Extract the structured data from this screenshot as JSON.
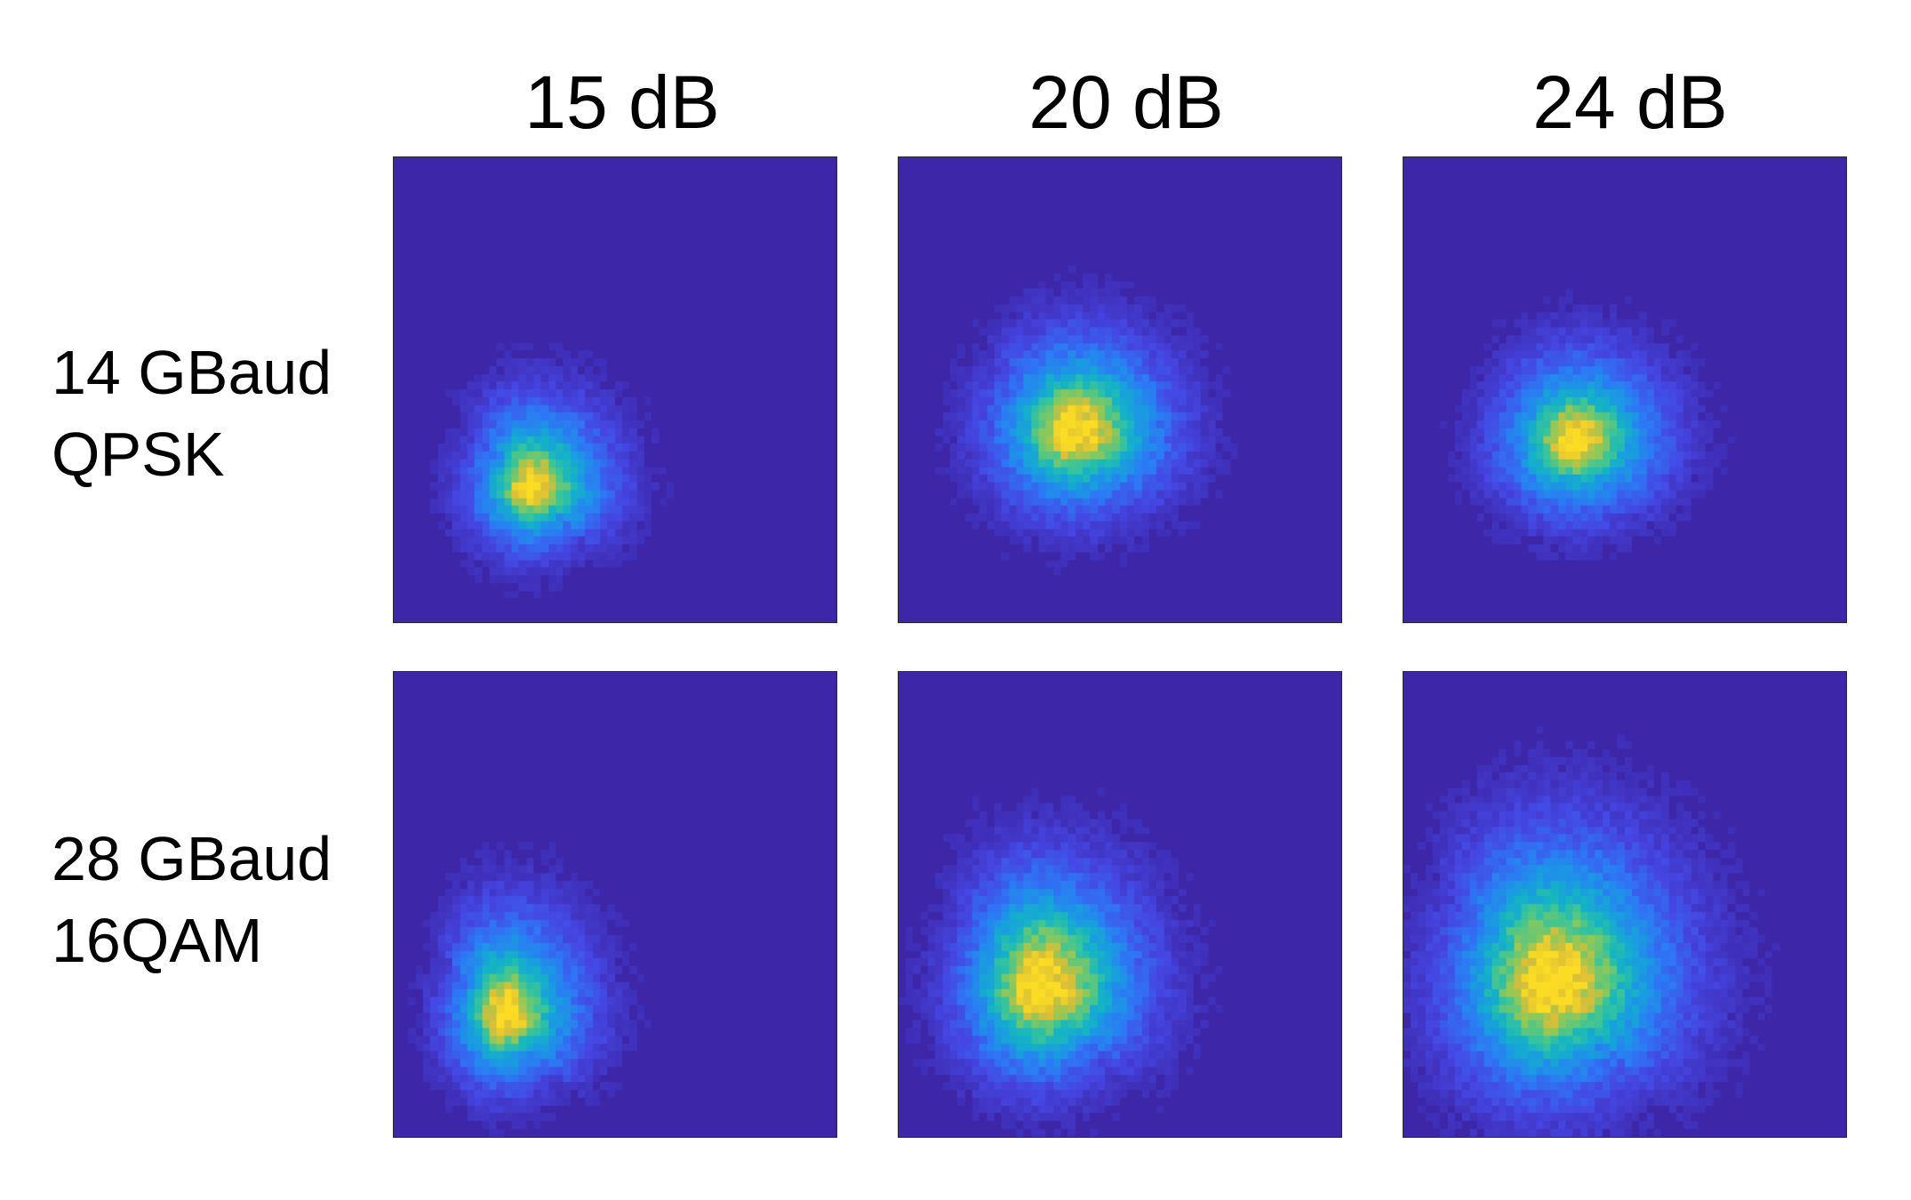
{
  "chart_data": {
    "type": "heatmap",
    "colormap": "parula",
    "background_color": "#3d26a8",
    "column_labels": [
      "15 dB",
      "20 dB",
      "24 dB"
    ],
    "row_labels": [
      [
        "14 GBaud",
        "QPSK"
      ],
      [
        "28 GBaud",
        "16QAM"
      ]
    ],
    "grid_bins": 60,
    "panels": [
      {
        "row": 0,
        "col": 0,
        "center": [
          0.31,
          0.71
        ],
        "spread": [
          0.09,
          0.09
        ],
        "skew": 0.35,
        "peak_spread_ratio": 0.45
      },
      {
        "row": 0,
        "col": 1,
        "center": [
          0.4,
          0.59
        ],
        "spread": [
          0.125,
          0.115
        ],
        "skew": 0.15,
        "peak_spread_ratio": 0.5
      },
      {
        "row": 0,
        "col": 2,
        "center": [
          0.39,
          0.61
        ],
        "spread": [
          0.115,
          0.105
        ],
        "skew": 0.15,
        "peak_spread_ratio": 0.45
      },
      {
        "row": 1,
        "col": 0,
        "center": [
          0.25,
          0.74
        ],
        "spread": [
          0.085,
          0.1
        ],
        "skew": 0.45,
        "peak_spread_ratio": 0.45
      },
      {
        "row": 1,
        "col": 1,
        "center": [
          0.32,
          0.68
        ],
        "spread": [
          0.12,
          0.13
        ],
        "skew": 0.3,
        "peak_spread_ratio": 0.55
      },
      {
        "row": 1,
        "col": 2,
        "center": [
          0.33,
          0.67
        ],
        "spread": [
          0.15,
          0.16
        ],
        "skew": 0.3,
        "peak_spread_ratio": 0.55
      }
    ]
  }
}
